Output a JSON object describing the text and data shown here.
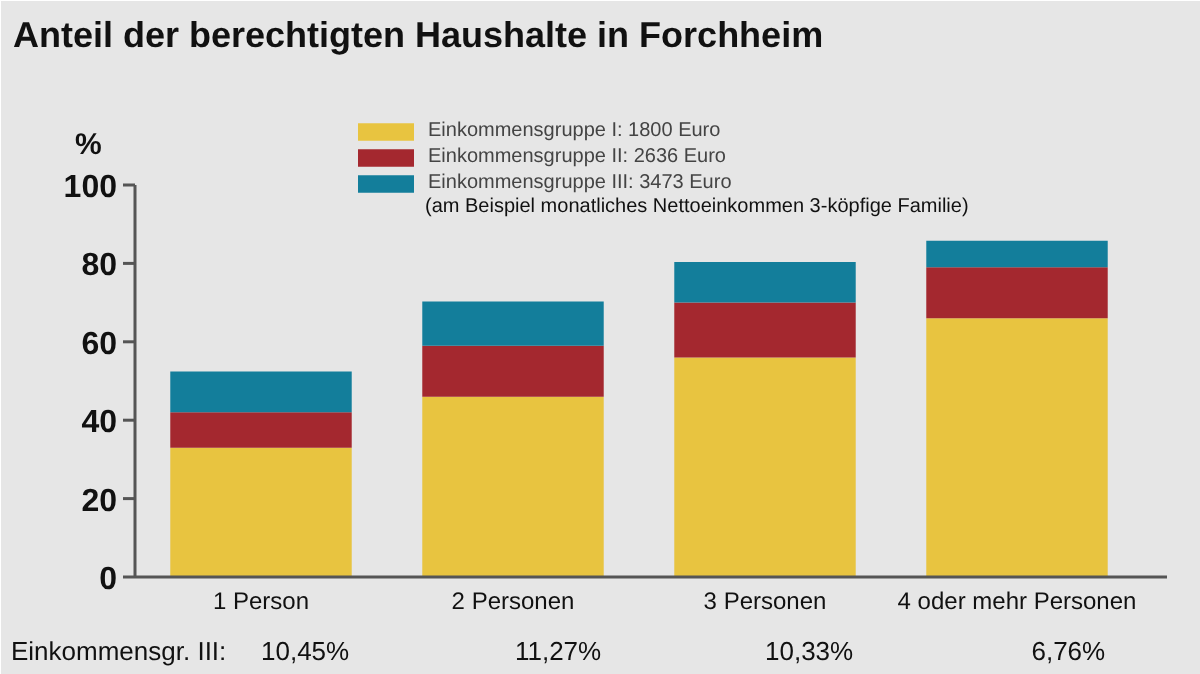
{
  "chart_data": {
    "type": "bar",
    "stacked": true,
    "title": "Anteil der berechtigten Haushalte in Forchheim",
    "ylabel": "%",
    "categories": [
      "1 Person",
      "2 Personen",
      "3 Personen",
      "4 oder mehr Personen"
    ],
    "series": [
      {
        "name": "Einkommensgruppe I: 1800 Euro",
        "color": "#e8c440",
        "values": [
          33,
          46,
          56,
          66
        ]
      },
      {
        "name": "Einkommensgruppe II: 2636 Euro",
        "color": "#a4282f",
        "values": [
          9,
          13,
          14,
          13
        ]
      },
      {
        "name": "Einkommensgruppe III: 3473 Euro",
        "color": "#137e9b",
        "values": [
          10.45,
          11.27,
          10.33,
          6.76
        ],
        "value_labels": [
          "10,45%",
          "11,27%",
          "10,33%",
          "6,76%"
        ]
      }
    ],
    "annotations": [
      "(am Beispiel monatliches Nettoeinkommen 3-köpfige Familie)",
      "Einkommensgr. III:"
    ],
    "ylim": [
      0,
      100
    ],
    "yticks": [
      0,
      20,
      40,
      60,
      80,
      100
    ],
    "grid": false,
    "legend": "top"
  }
}
